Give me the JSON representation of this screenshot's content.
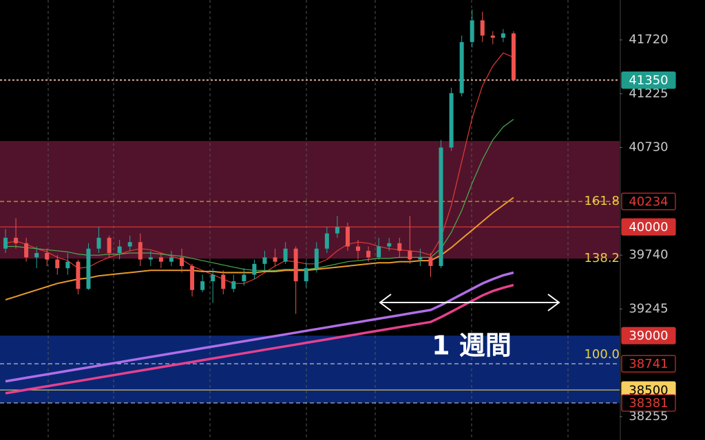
{
  "chart_data": {
    "type": "candlestick",
    "ylim": [
      38040,
      42087
    ],
    "yticks": [
      38255,
      39245,
      39740,
      40730,
      41225,
      41720
    ],
    "up_color": "#26a69a",
    "down_color": "#ef5350",
    "open": [
      39800,
      39900,
      39850,
      39720,
      39760,
      39700,
      39620,
      39680,
      39430,
      39800,
      39900,
      39760,
      39820,
      39860,
      39700,
      39720,
      39680,
      39720,
      39640,
      39420,
      39500,
      39560,
      39430,
      39500,
      39560,
      39660,
      39720,
      39680,
      39800,
      39500,
      39620,
      39800,
      39940,
      40000,
      39820,
      39780,
      39720,
      39820,
      39850,
      39780,
      39700,
      39720,
      39640,
      40730,
      41230,
      41700,
      41900,
      41760,
      41740,
      41780
    ],
    "high": [
      39980,
      40080,
      39900,
      39820,
      39800,
      39740,
      39760,
      39700,
      39850,
      40000,
      39920,
      39880,
      39920,
      39940,
      39780,
      39760,
      39780,
      39800,
      39660,
      39560,
      39620,
      39600,
      39560,
      39620,
      39700,
      39780,
      39800,
      39860,
      39820,
      39680,
      39860,
      40000,
      40100,
      40040,
      39880,
      39820,
      39900,
      39900,
      39900,
      40100,
      39800,
      39760,
      40800,
      41280,
      41760,
      42000,
      41980,
      41800,
      41820,
      41800
    ],
    "low": [
      39760,
      39800,
      39680,
      39620,
      39640,
      39560,
      39560,
      39380,
      39420,
      39760,
      39720,
      39700,
      39780,
      39640,
      39640,
      39620,
      39640,
      39580,
      39360,
      39400,
      39300,
      39380,
      39400,
      39460,
      39520,
      39600,
      39640,
      39660,
      39200,
      39440,
      39580,
      39760,
      39900,
      39780,
      39700,
      39680,
      39700,
      39780,
      39720,
      39660,
      39640,
      39540,
      39620,
      40700,
      41200,
      41650,
      41700,
      41680,
      41700,
      41340
    ],
    "close": [
      39900,
      39850,
      39720,
      39760,
      39700,
      39620,
      39680,
      39430,
      39800,
      39900,
      39760,
      39820,
      39860,
      39700,
      39720,
      39680,
      39720,
      39640,
      39420,
      39500,
      39560,
      39430,
      39500,
      39560,
      39660,
      39720,
      39680,
      39800,
      39500,
      39620,
      39800,
      39940,
      40000,
      39820,
      39780,
      39720,
      39820,
      39850,
      39780,
      39700,
      39720,
      39640,
      40730,
      41230,
      41700,
      41900,
      41760,
      41740,
      41780,
      41350
    ],
    "series": [
      {
        "color": "#e53935",
        "width": 1.2,
        "values": [
          39850,
          39870,
          39840,
          39800,
          39770,
          39720,
          39690,
          39620,
          39630,
          39680,
          39720,
          39750,
          39780,
          39800,
          39790,
          39760,
          39730,
          39700,
          39640,
          39600,
          39560,
          39520,
          39480,
          39480,
          39520,
          39580,
          39640,
          39690,
          39680,
          39660,
          39660,
          39700,
          39780,
          39840,
          39860,
          39850,
          39820,
          39800,
          39790,
          39780,
          39770,
          39740,
          39900,
          40200,
          40600,
          41000,
          41300,
          41480,
          41600,
          41560
        ]
      },
      {
        "color": "#4caf50",
        "width": 1.2,
        "values": [
          39820,
          39820,
          39810,
          39800,
          39790,
          39780,
          39770,
          39750,
          39740,
          39740,
          39750,
          39750,
          39760,
          39760,
          39760,
          39750,
          39740,
          39730,
          39710,
          39690,
          39670,
          39650,
          39630,
          39610,
          39600,
          39600,
          39600,
          39610,
          39610,
          39610,
          39620,
          39640,
          39660,
          39680,
          39690,
          39700,
          39710,
          39710,
          39720,
          39720,
          39720,
          39720,
          39800,
          39950,
          40150,
          40400,
          40620,
          40800,
          40920,
          40990
        ]
      },
      {
        "color": "#e89a2c",
        "width": 2,
        "values": [
          39330,
          39360,
          39390,
          39420,
          39450,
          39480,
          39500,
          39520,
          39530,
          39550,
          39560,
          39570,
          39580,
          39590,
          39600,
          39600,
          39600,
          39600,
          39600,
          39590,
          39590,
          39580,
          39580,
          39580,
          39580,
          39590,
          39590,
          39600,
          39600,
          39600,
          39610,
          39620,
          39630,
          39640,
          39650,
          39660,
          39670,
          39670,
          39680,
          39680,
          39690,
          39690,
          39740,
          39810,
          39890,
          39970,
          40050,
          40130,
          40200,
          40270
        ]
      },
      {
        "color": "#b06ee8",
        "width": 3.5,
        "values": [
          38580,
          38596,
          38612,
          38628,
          38644,
          38660,
          38676,
          38692,
          38708,
          38724,
          38740,
          38756,
          38772,
          38788,
          38804,
          38820,
          38836,
          38852,
          38868,
          38884,
          38900,
          38916,
          38932,
          38948,
          38964,
          38980,
          38996,
          39012,
          39028,
          39044,
          39060,
          39076,
          39092,
          39108,
          39124,
          39140,
          39156,
          39172,
          39188,
          39204,
          39220,
          39236,
          39280,
          39330,
          39380,
          39430,
          39480,
          39520,
          39555,
          39580
        ]
      },
      {
        "color": "#e8408e",
        "width": 3.5,
        "values": [
          38470,
          38486,
          38502,
          38518,
          38534,
          38550,
          38566,
          38582,
          38598,
          38614,
          38630,
          38646,
          38662,
          38678,
          38694,
          38710,
          38726,
          38742,
          38758,
          38774,
          38790,
          38806,
          38822,
          38838,
          38854,
          38870,
          38886,
          38902,
          38918,
          38934,
          38950,
          38966,
          38982,
          38998,
          39014,
          39030,
          39046,
          39062,
          39078,
          39094,
          39110,
          39126,
          39170,
          39220,
          39270,
          39320,
          39370,
          39410,
          39440,
          39465
        ]
      }
    ],
    "zones": [
      {
        "from": 39708,
        "to": 40790,
        "color": "#5a1530"
      },
      {
        "from": 38381,
        "to": 39000,
        "color": "#0b2a80"
      }
    ],
    "levels": [
      {
        "value": 41350,
        "line": "dotted",
        "line_color": "#e0b0a0",
        "box": "fill",
        "color": "#1e9c8c",
        "text_color": "#ffffff"
      },
      {
        "value": 40234,
        "line": "dashed",
        "line_color": "#d4a03a",
        "box": "outline",
        "color": "#d32f2f",
        "text_color": "#e53935"
      },
      {
        "value": 40000,
        "line": "solid",
        "line_color": "#e53935",
        "box": "fill",
        "color": "#d32f2f",
        "text_color": "#ffffff"
      },
      {
        "value": 39000,
        "line": "none",
        "line_color": "#d32f2f",
        "box": "fill",
        "color": "#d32f2f",
        "text_color": "#ffffff"
      },
      {
        "value": 38741,
        "line": "dashed",
        "line_color": "#c0c0c0",
        "box": "outline",
        "color": "#d32f2f",
        "text_color": "#e53935"
      },
      {
        "value": 38500,
        "line": "solid",
        "line_color": "#d4c060",
        "box": "fill",
        "color": "#f5d060",
        "text_color": "#000000"
      },
      {
        "value": 38381,
        "line": "dashed",
        "line_color": "#c0c0c0",
        "box": "outline",
        "color": "#d32f2f",
        "text_color": "#e53935"
      }
    ],
    "fib": [
      {
        "value": 40234,
        "label": "161.8"
      },
      {
        "value": 39709,
        "label": "138.2"
      },
      {
        "value": 38824,
        "label": "100.0"
      }
    ],
    "annotation": "1 週間"
  }
}
